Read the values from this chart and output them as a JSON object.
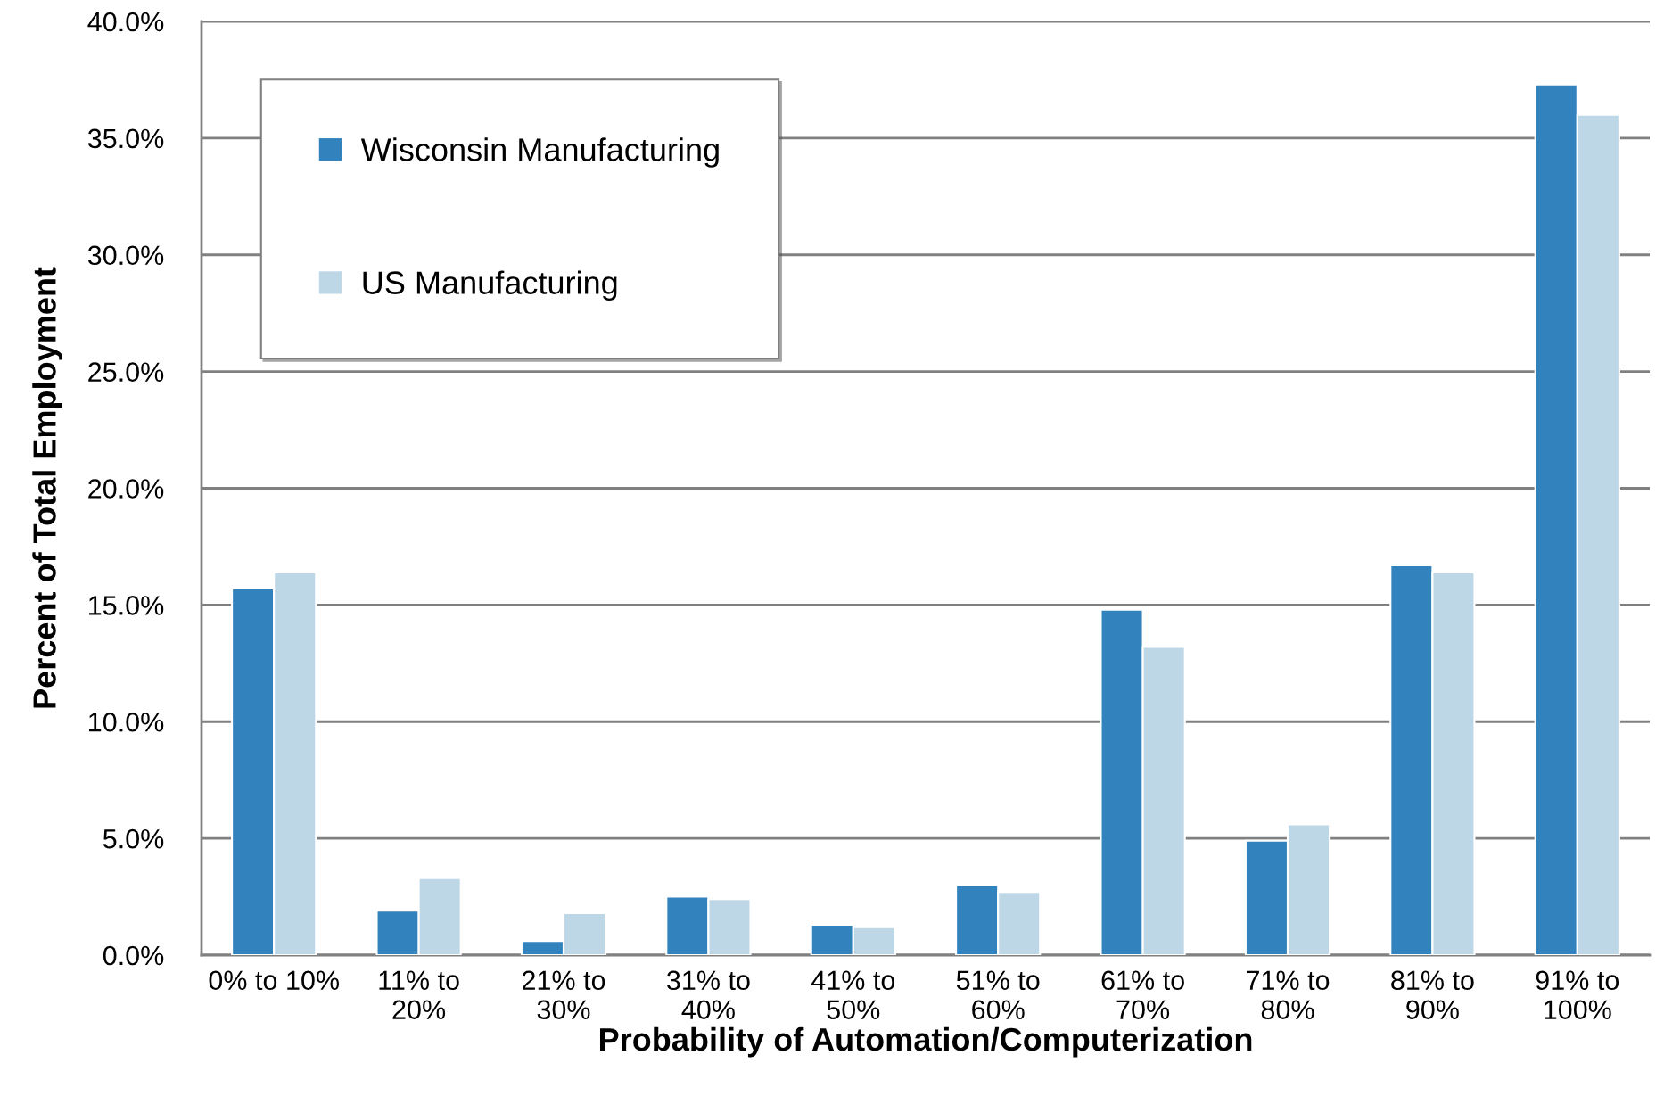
{
  "chart_data": {
    "type": "bar",
    "xlabel": "Probability of Automation/Computerization",
    "ylabel": "Percent of Total Employment",
    "categories": [
      "0% to 10%",
      "11% to\n20%",
      "21% to\n30%",
      "31% to\n40%",
      "41% to\n50%",
      "51% to\n60%",
      "61% to\n70%",
      "71% to\n80%",
      "81% to\n90%",
      "91% to\n100%"
    ],
    "series": [
      {
        "name": "Wisconsin Manufacturing",
        "color": "#3282be",
        "values": [
          15.7,
          1.9,
          0.6,
          2.5,
          1.3,
          3.0,
          14.8,
          4.9,
          16.7,
          37.3
        ]
      },
      {
        "name": "US Manufacturing",
        "color": "#bed7e6",
        "values": [
          16.4,
          3.3,
          1.8,
          2.4,
          1.2,
          2.7,
          13.2,
          5.6,
          16.4,
          36.0
        ]
      }
    ],
    "ylim": [
      0,
      40
    ],
    "yticks": [
      {
        "value": 0,
        "label": "0.0%"
      },
      {
        "value": 5,
        "label": "5.0%"
      },
      {
        "value": 10,
        "label": "10.0%"
      },
      {
        "value": 15,
        "label": "15.0%"
      },
      {
        "value": 20,
        "label": "20.0%"
      },
      {
        "value": 25,
        "label": "25.0%"
      },
      {
        "value": 30,
        "label": "30.0%"
      },
      {
        "value": 35,
        "label": "35.0%"
      },
      {
        "value": 40,
        "label": "40.0%"
      }
    ],
    "grid": "y",
    "legend": "top left"
  }
}
